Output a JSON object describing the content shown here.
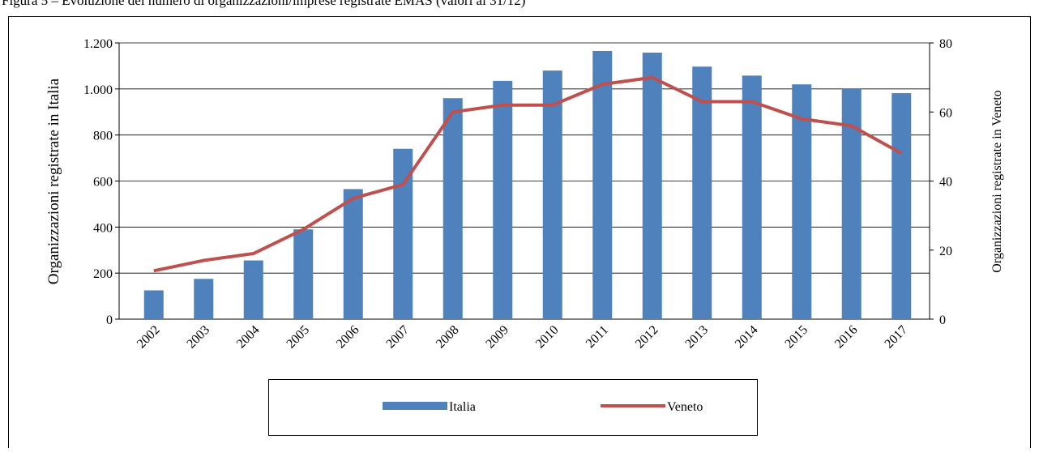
{
  "chart_data": {
    "type": "bar",
    "title": "Figura 5 – Evoluzione del numero di organizzazioni/imprese registrate EMAS (valori al 31/12)",
    "categories": [
      "2002",
      "2003",
      "2004",
      "2005",
      "2006",
      "2007",
      "2008",
      "2009",
      "2010",
      "2011",
      "2012",
      "2013",
      "2014",
      "2015",
      "2016",
      "2017"
    ],
    "series": [
      {
        "name": "Italia",
        "type": "bar",
        "color": "#4f81bd",
        "values": [
          125,
          175,
          255,
          390,
          565,
          740,
          960,
          1035,
          1080,
          1165,
          1158,
          1097,
          1058,
          1020,
          1000,
          982
        ]
      },
      {
        "name": "Veneto",
        "type": "line",
        "axis": "y2",
        "color": "#c0504d",
        "values": [
          14,
          17,
          19,
          26,
          35,
          39,
          60,
          62,
          62,
          68,
          70,
          63,
          63,
          58,
          56,
          48
        ]
      }
    ],
    "ylabel": "Organizzazioni registrate in Italia",
    "y2label": "Organizzazioni registrate in Veneto",
    "ylim": [
      0,
      1200
    ],
    "yticks": [
      0,
      200,
      400,
      600,
      800,
      {
        "value": 1000,
        "label": "1.000"
      },
      {
        "value": 1200,
        "label": "1.200"
      }
    ],
    "y2lim": [
      0,
      80
    ],
    "y2ticks": [
      0,
      20,
      40,
      60,
      80
    ],
    "grid": true,
    "legend": "bottom"
  }
}
